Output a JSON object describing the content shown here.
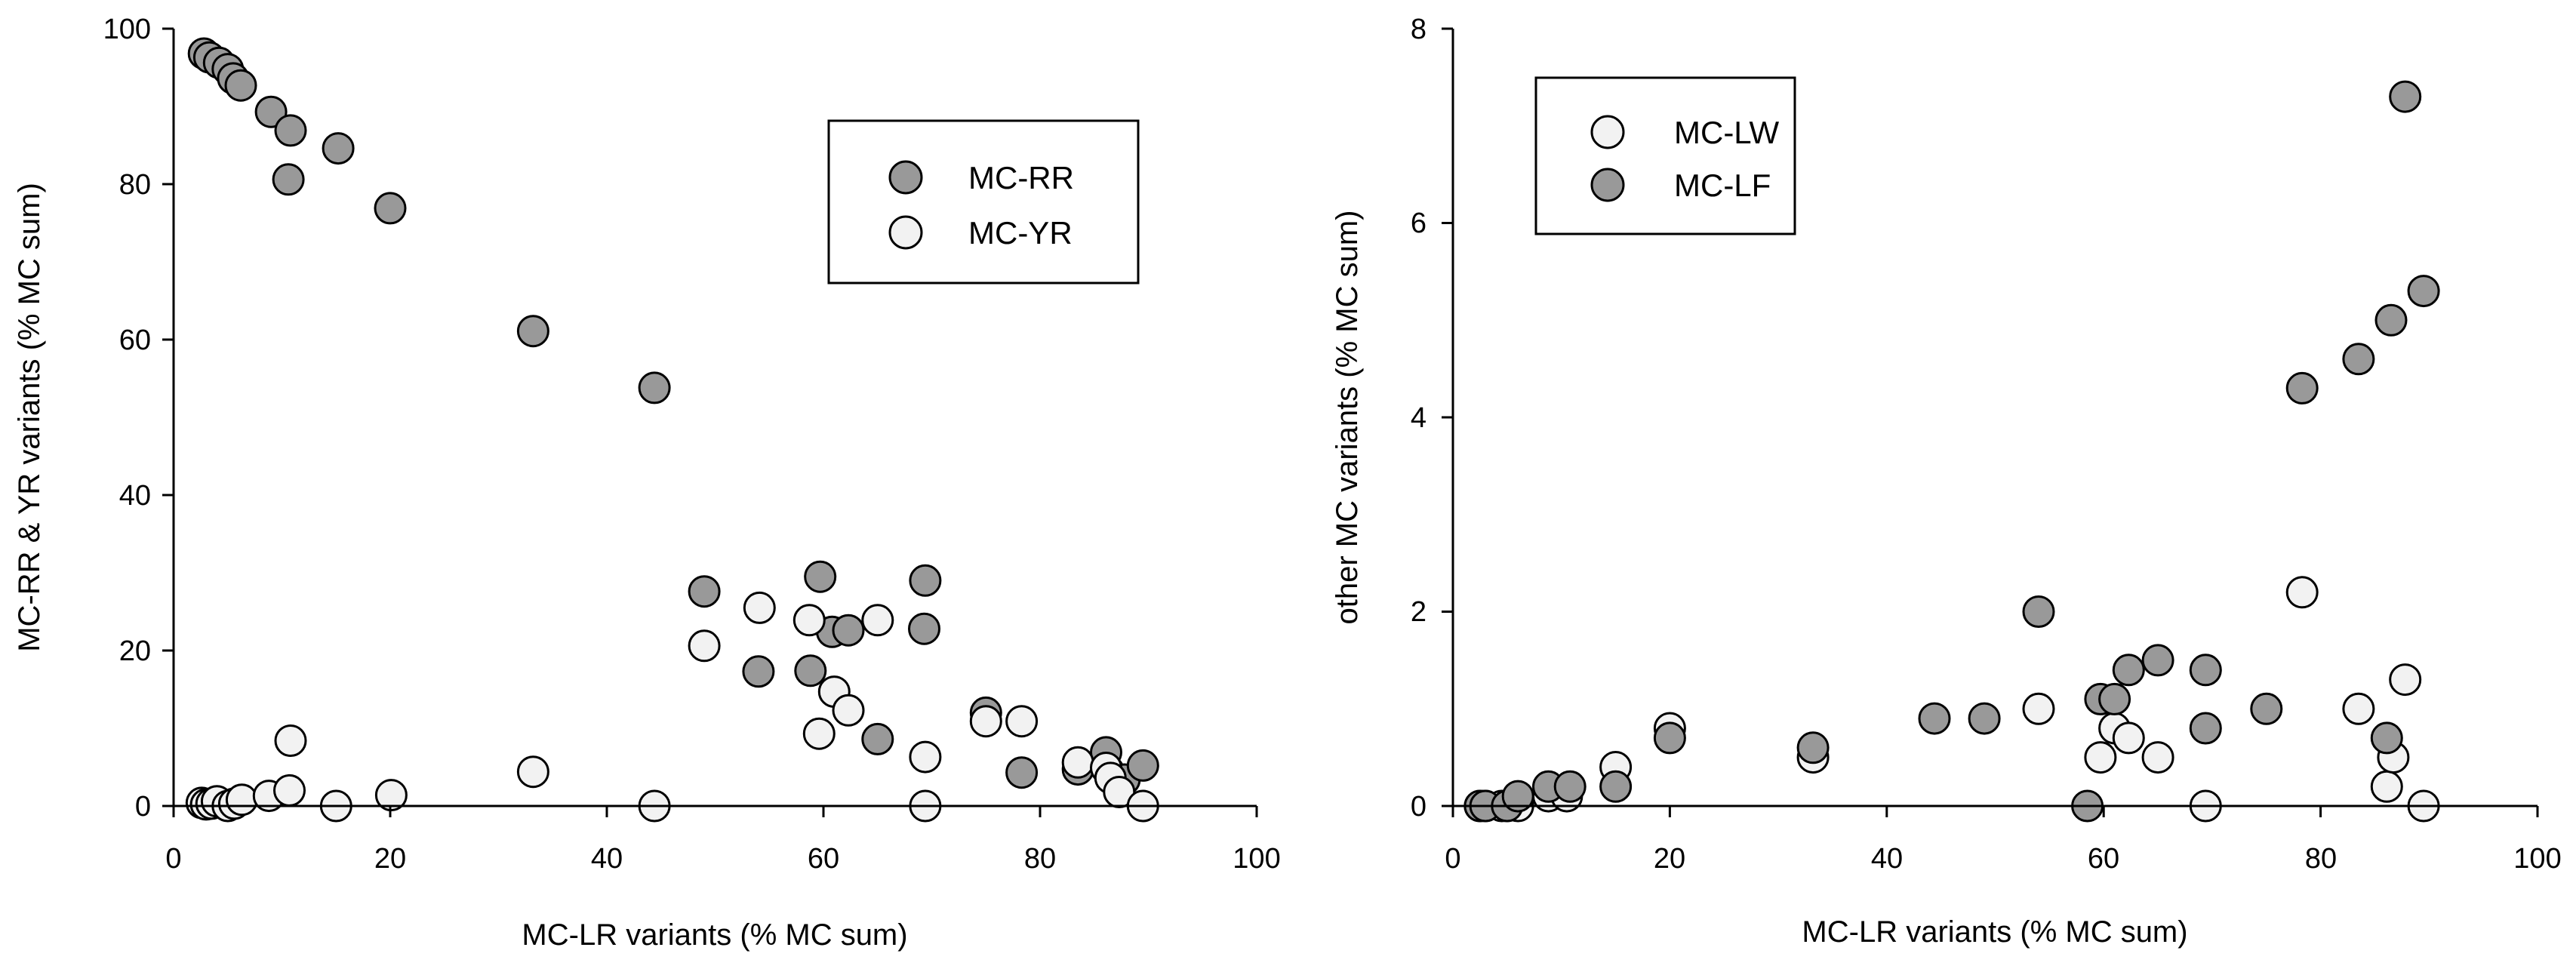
{
  "chart_data": [
    {
      "type": "scatter",
      "title": "",
      "xlabel": "MC-LR variants (% MC sum)",
      "ylabel": "MC-RR & YR variants (% MC sum)",
      "xlim": [
        0,
        100
      ],
      "ylim": [
        0,
        100
      ],
      "xticks": [
        "0",
        "20",
        "40",
        "60",
        "80",
        "100"
      ],
      "yticks": [
        "0",
        "20",
        "40",
        "60",
        "80",
        "100"
      ],
      "legend_position": "top-right",
      "series": [
        {
          "name": "MC-RR",
          "color": "#999999",
          "points": [
            [
              2.8,
              96.8
            ],
            [
              3.3,
              96.3
            ],
            [
              4.2,
              95.6
            ],
            [
              5.0,
              94.8
            ],
            [
              5.5,
              93.6
            ],
            [
              6.2,
              92.7
            ],
            [
              9.0,
              89.3
            ],
            [
              10.8,
              86.9
            ],
            [
              10.6,
              80.6
            ],
            [
              15.2,
              84.6
            ],
            [
              20.0,
              76.9
            ],
            [
              33.2,
              61.1
            ],
            [
              44.4,
              53.8
            ],
            [
              49.0,
              27.6
            ],
            [
              54.0,
              17.3
            ],
            [
              59.7,
              29.5
            ],
            [
              60.8,
              22.4
            ],
            [
              58.8,
              17.4
            ],
            [
              62.3,
              22.6
            ],
            [
              65.0,
              8.6
            ],
            [
              69.4,
              29.0
            ],
            [
              69.3,
              22.8
            ],
            [
              75.0,
              12.0
            ],
            [
              78.3,
              4.3
            ],
            [
              83.5,
              4.7
            ],
            [
              86.1,
              6.9
            ],
            [
              86.3,
              4.5
            ],
            [
              87.8,
              3.4
            ],
            [
              89.5,
              5.2
            ]
          ]
        },
        {
          "name": "MC-YR",
          "color": "#f2f2f2",
          "points": [
            [
              2.6,
              0.4
            ],
            [
              3.0,
              0.2
            ],
            [
              3.5,
              0.3
            ],
            [
              4.0,
              0.6
            ],
            [
              5.0,
              0.0
            ],
            [
              5.6,
              0.3
            ],
            [
              6.3,
              0.8
            ],
            [
              8.8,
              1.3
            ],
            [
              10.8,
              8.4
            ],
            [
              10.7,
              2.0
            ],
            [
              15.0,
              0.0
            ],
            [
              20.1,
              1.4
            ],
            [
              33.2,
              4.4
            ],
            [
              44.4,
              0.0
            ],
            [
              49.0,
              20.6
            ],
            [
              54.1,
              25.5
            ],
            [
              58.7,
              23.9
            ],
            [
              59.6,
              9.3
            ],
            [
              61.0,
              14.7
            ],
            [
              62.3,
              12.3
            ],
            [
              65.0,
              23.9
            ],
            [
              69.4,
              6.3
            ],
            [
              69.4,
              0.0
            ],
            [
              75.0,
              10.9
            ],
            [
              78.3,
              10.9
            ],
            [
              83.5,
              5.6
            ],
            [
              86.1,
              4.9
            ],
            [
              86.5,
              3.6
            ],
            [
              87.3,
              1.8
            ],
            [
              89.5,
              0.0
            ]
          ]
        }
      ]
    },
    {
      "type": "scatter",
      "title": "",
      "xlabel": "MC-LR variants (% MC sum)",
      "ylabel": "other MC variants (% MC sum)",
      "xlim": [
        0,
        100
      ],
      "ylim": [
        0,
        8
      ],
      "xticks": [
        "0",
        "20",
        "40",
        "60",
        "80",
        "100"
      ],
      "yticks": [
        "0",
        "2",
        "4",
        "6",
        "8"
      ],
      "legend_position": "top-left",
      "series": [
        {
          "name": "MC-LW",
          "color": "#f2f2f2",
          "points": [
            [
              2.5,
              0.0
            ],
            [
              3.0,
              0.0
            ],
            [
              4.5,
              0.0
            ],
            [
              5.0,
              0.0
            ],
            [
              6.0,
              0.0
            ],
            [
              8.8,
              0.1
            ],
            [
              10.5,
              0.1
            ],
            [
              15.0,
              0.4
            ],
            [
              20.0,
              0.8
            ],
            [
              33.2,
              0.5
            ],
            [
              54.0,
              1.0
            ],
            [
              59.7,
              0.5
            ],
            [
              61.0,
              0.8
            ],
            [
              62.3,
              0.7
            ],
            [
              65.0,
              0.5
            ],
            [
              69.4,
              0.0
            ],
            [
              78.3,
              2.2
            ],
            [
              83.5,
              1.0
            ],
            [
              86.1,
              0.2
            ],
            [
              86.7,
              0.5
            ],
            [
              87.8,
              1.3
            ],
            [
              89.5,
              0.0
            ]
          ]
        },
        {
          "name": "MC-LF",
          "color": "#999999",
          "points": [
            [
              2.5,
              0.0
            ],
            [
              3.0,
              0.0
            ],
            [
              5.0,
              0.0
            ],
            [
              6.0,
              0.1
            ],
            [
              8.8,
              0.2
            ],
            [
              10.8,
              0.2
            ],
            [
              15.0,
              0.2
            ],
            [
              20.0,
              0.7
            ],
            [
              33.2,
              0.6
            ],
            [
              44.4,
              0.9
            ],
            [
              49.0,
              0.9
            ],
            [
              54.0,
              2.0
            ],
            [
              58.5,
              0.0
            ],
            [
              59.7,
              1.1
            ],
            [
              61.0,
              1.1
            ],
            [
              62.3,
              1.4
            ],
            [
              65.0,
              1.5
            ],
            [
              69.4,
              1.4
            ],
            [
              69.4,
              0.8
            ],
            [
              75.0,
              1.0
            ],
            [
              78.3,
              4.3
            ],
            [
              83.5,
              4.6
            ],
            [
              86.1,
              0.7
            ],
            [
              86.5,
              5.0
            ],
            [
              87.8,
              7.3
            ],
            [
              89.5,
              5.3
            ]
          ]
        }
      ]
    }
  ]
}
